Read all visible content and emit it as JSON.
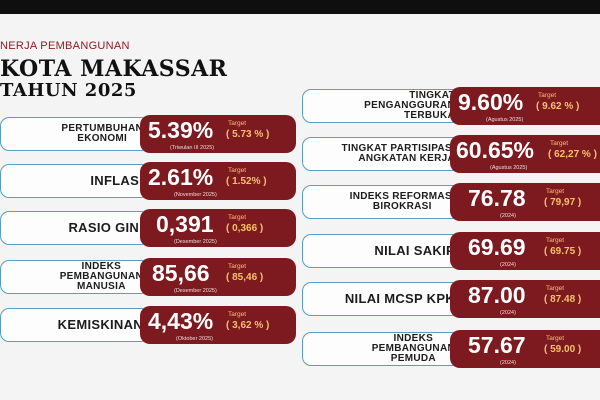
{
  "header": {
    "kinerja": "NERJA PEMBANGUNAN",
    "title_line1": "KOTA MAKASSAR",
    "title_line2": "TAHUN 2025"
  },
  "left": [
    {
      "label": "PERTUMBUHAN\nEKONOMI",
      "value": "5.39%",
      "note": "(Triwulan III 2025)",
      "target_label": "Target",
      "target": "( 5.73 % )"
    },
    {
      "label": "INFLASI",
      "value": "2.61%",
      "note": "(November 2025)",
      "target_label": "Target",
      "target": "( 1.52% )"
    },
    {
      "label": "RASIO GINI",
      "value": "0,391",
      "note": "(Desember 2025)",
      "target_label": "Target",
      "target": "( 0,366 )"
    },
    {
      "label": "INDEKS\nPEMBANGUNAN\nMANUSIA",
      "value": "85,66",
      "note": "(Desember 2025)",
      "target_label": "Target",
      "target": "( 85,46 )"
    },
    {
      "label": "KEMISKINAN",
      "value": "4,43%",
      "note": "(Oktober 2025)",
      "target_label": "Target",
      "target": "( 3,62 % )"
    }
  ],
  "right": [
    {
      "label": "TINGKAT\nPENGANGGURAN\nTERBUKA",
      "value": "9.60%",
      "note": "(Agustus 2025)",
      "target_label": "Target",
      "target": "( 9.62 % )"
    },
    {
      "label": "TINGKAT PARTISIPASI\nANGKATAN KERJA",
      "value": "60.65%",
      "note": "(Agustus 2025)",
      "target_label": "Target",
      "target": "( 62,27 % )"
    },
    {
      "label": "INDEKS REFORMASI\nBIROKRASI",
      "value": "76.78",
      "note": "(2024)",
      "target_label": "Target",
      "target": "( 79,97 )"
    },
    {
      "label": "NILAI SAKIP",
      "value": "69.69",
      "note": "(2024)",
      "target_label": "Target",
      "target": "( 69.75 )"
    },
    {
      "label": "NILAI MCSP KPK",
      "value": "87.00",
      "note": "(2024)",
      "target_label": "Target",
      "target": "( 87.48 )"
    },
    {
      "label": "INDEKS\nPEMBANGUNAN\nPEMUDA",
      "value": "57.67",
      "note": "(2024)",
      "target_label": "Target",
      "target": "( 59.00 )"
    }
  ]
}
